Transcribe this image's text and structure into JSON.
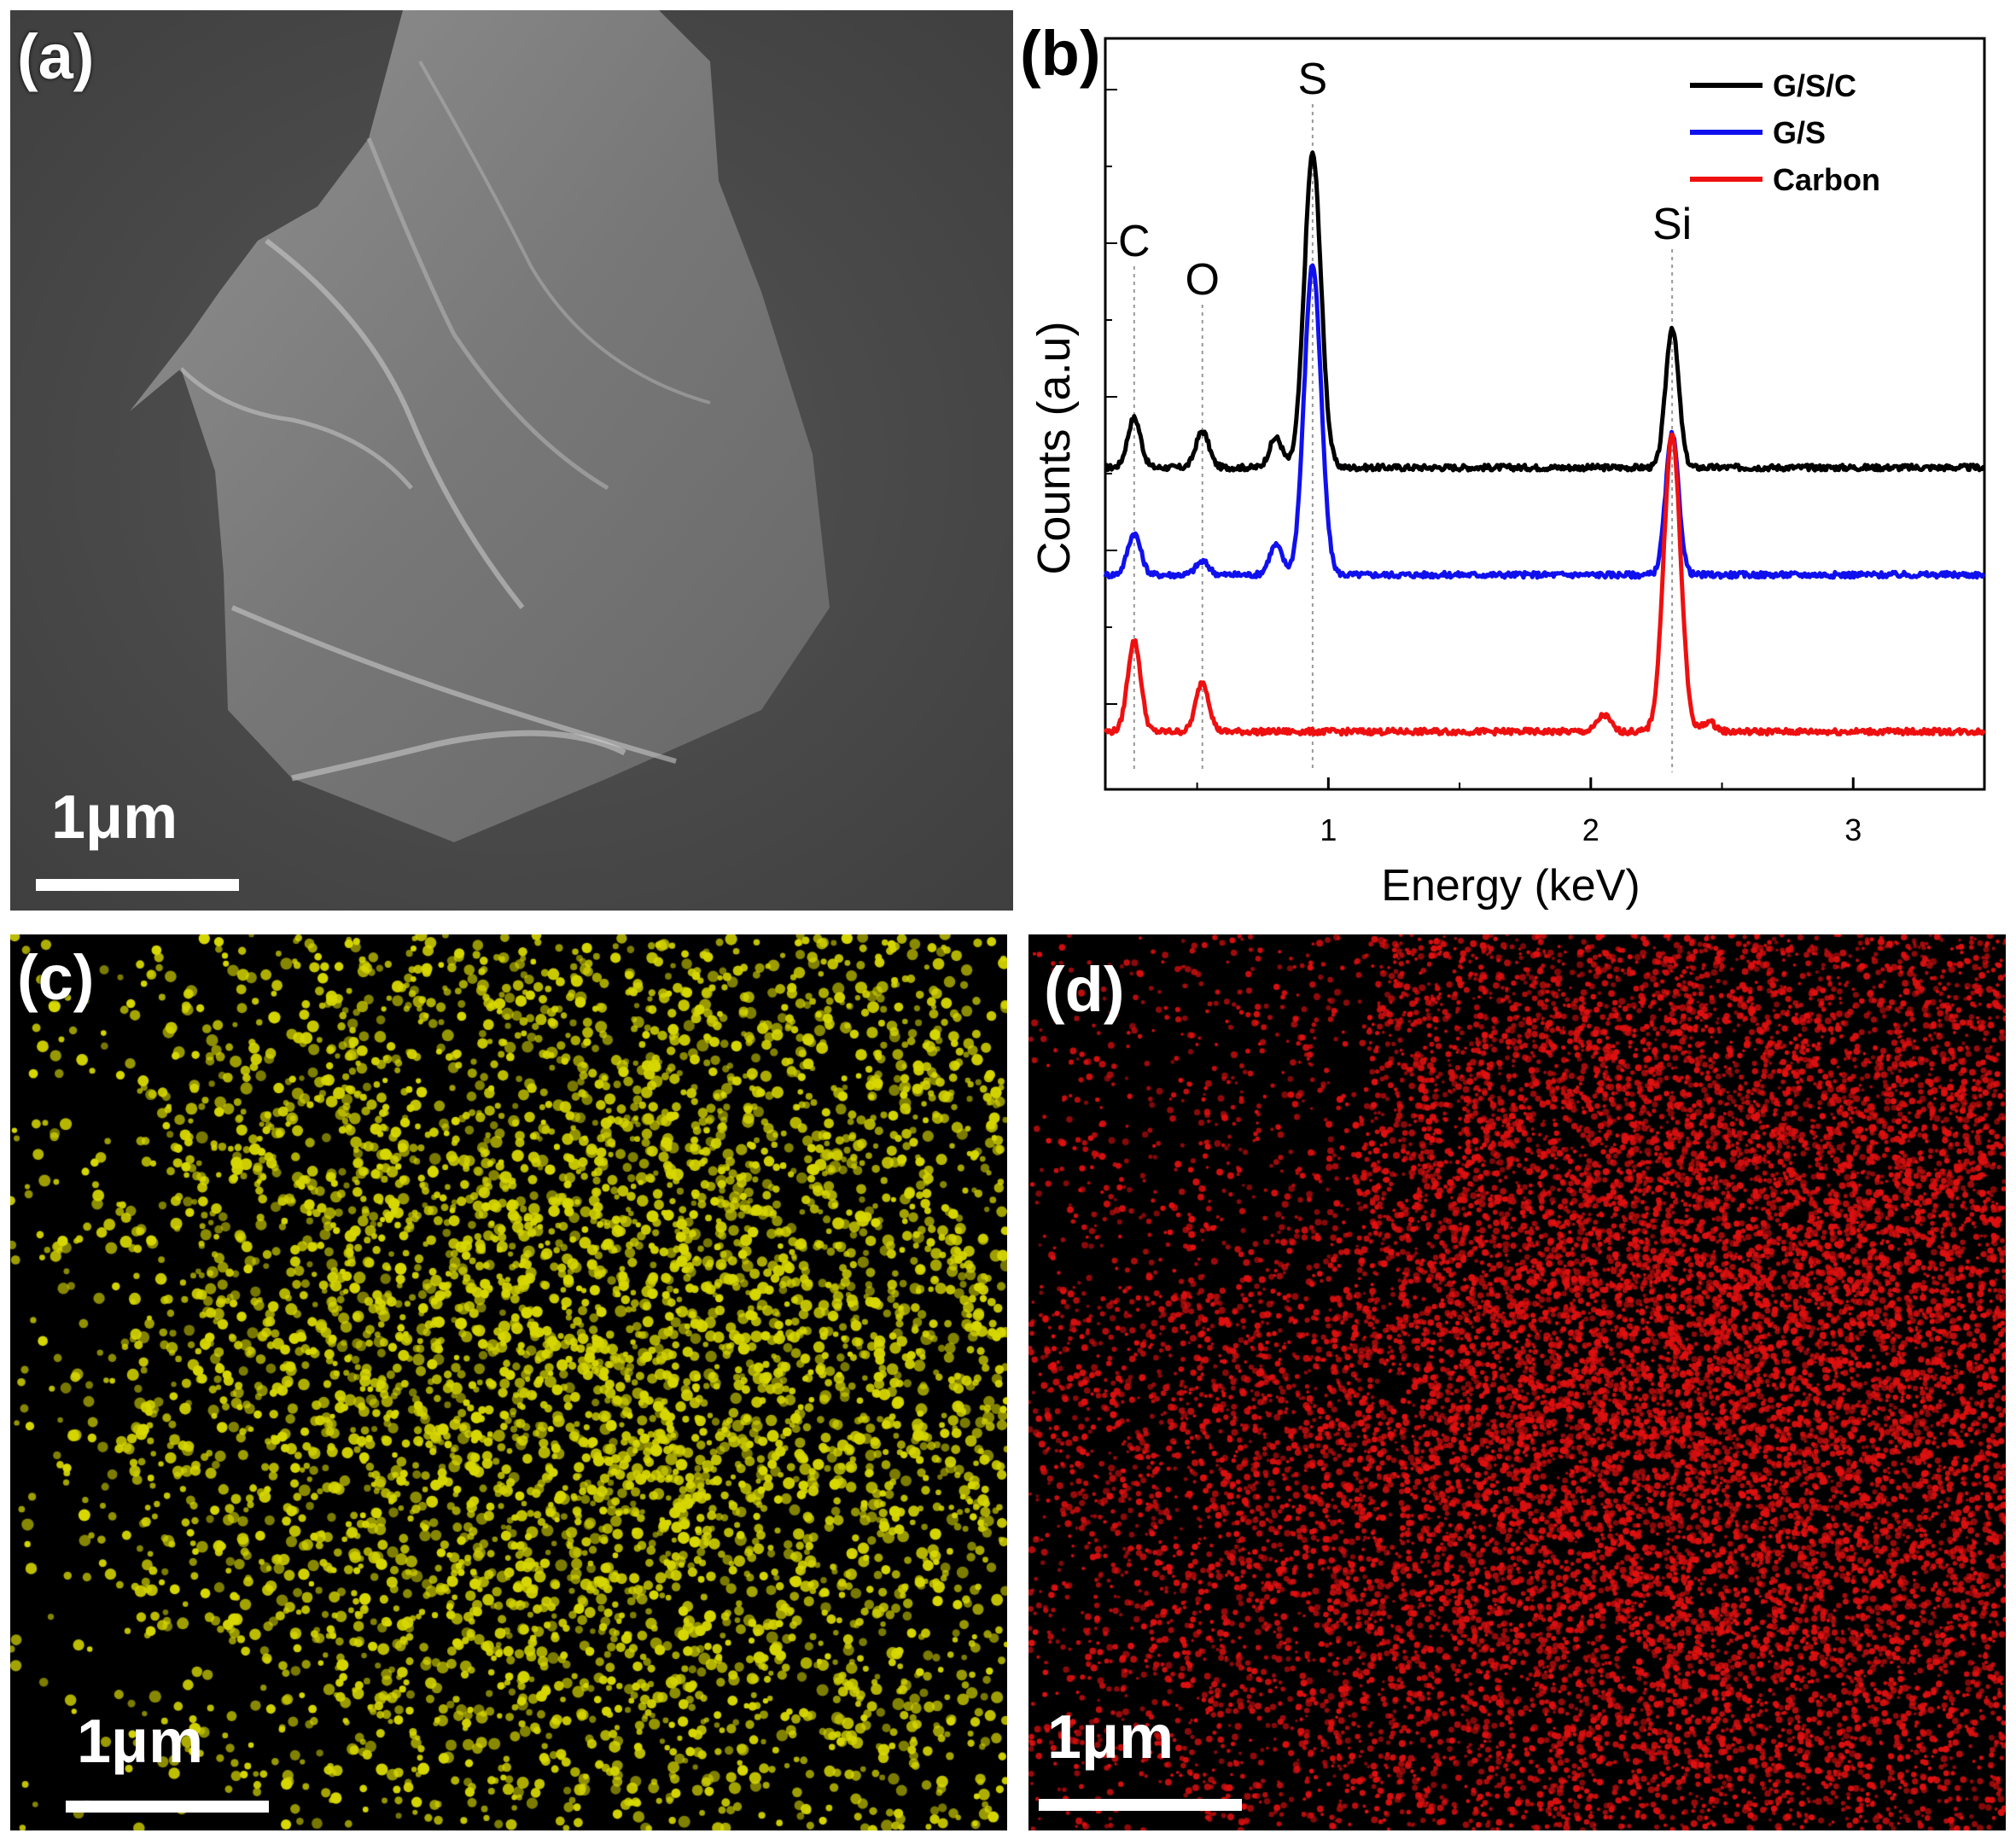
{
  "panels": {
    "a": {
      "label": "(a)",
      "scale_bar": "1μm"
    },
    "b": {
      "label": "(b)"
    },
    "c": {
      "label": "(c)",
      "scale_bar": "1μm",
      "map_color": "#d8d800"
    },
    "d": {
      "label": "(d)",
      "scale_bar": "1μm",
      "map_color": "#e01010"
    }
  },
  "chart_data": {
    "type": "line",
    "xlabel": "Energy (keV)",
    "ylabel": "Counts (a.u)",
    "xlim": [
      0.15,
      3.5
    ],
    "x_ticks": [
      "1",
      "2",
      "3"
    ],
    "x_tick_values": [
      1,
      2,
      3
    ],
    "grid": false,
    "legend_position": "top-right",
    "annotations": [
      {
        "text": "C",
        "x": 0.26
      },
      {
        "text": "O",
        "x": 0.52
      },
      {
        "text": "S",
        "x": 0.94
      },
      {
        "text": "Si",
        "x": 2.31
      }
    ],
    "series": [
      {
        "name": "G/S/C",
        "color": "#000000",
        "baseline": 1.6,
        "peaks": [
          {
            "x": 0.26,
            "h": 0.3
          },
          {
            "x": 0.52,
            "h": 0.22
          },
          {
            "x": 0.8,
            "h": 0.18
          },
          {
            "x": 0.94,
            "h": 1.9
          },
          {
            "x": 2.31,
            "h": 0.85
          }
        ]
      },
      {
        "name": "G/S",
        "color": "#1010ee",
        "baseline": 0.95,
        "peaks": [
          {
            "x": 0.26,
            "h": 0.25
          },
          {
            "x": 0.52,
            "h": 0.08
          },
          {
            "x": 0.8,
            "h": 0.18
          },
          {
            "x": 0.94,
            "h": 1.88
          },
          {
            "x": 2.31,
            "h": 0.85
          }
        ]
      },
      {
        "name": "Carbon",
        "color": "#ee1010",
        "baseline": 0.0,
        "peaks": [
          {
            "x": 0.26,
            "h": 0.55
          },
          {
            "x": 0.52,
            "h": 0.3
          },
          {
            "x": 2.05,
            "h": 0.1
          },
          {
            "x": 2.31,
            "h": 1.8
          },
          {
            "x": 2.45,
            "h": 0.06
          }
        ]
      }
    ]
  }
}
